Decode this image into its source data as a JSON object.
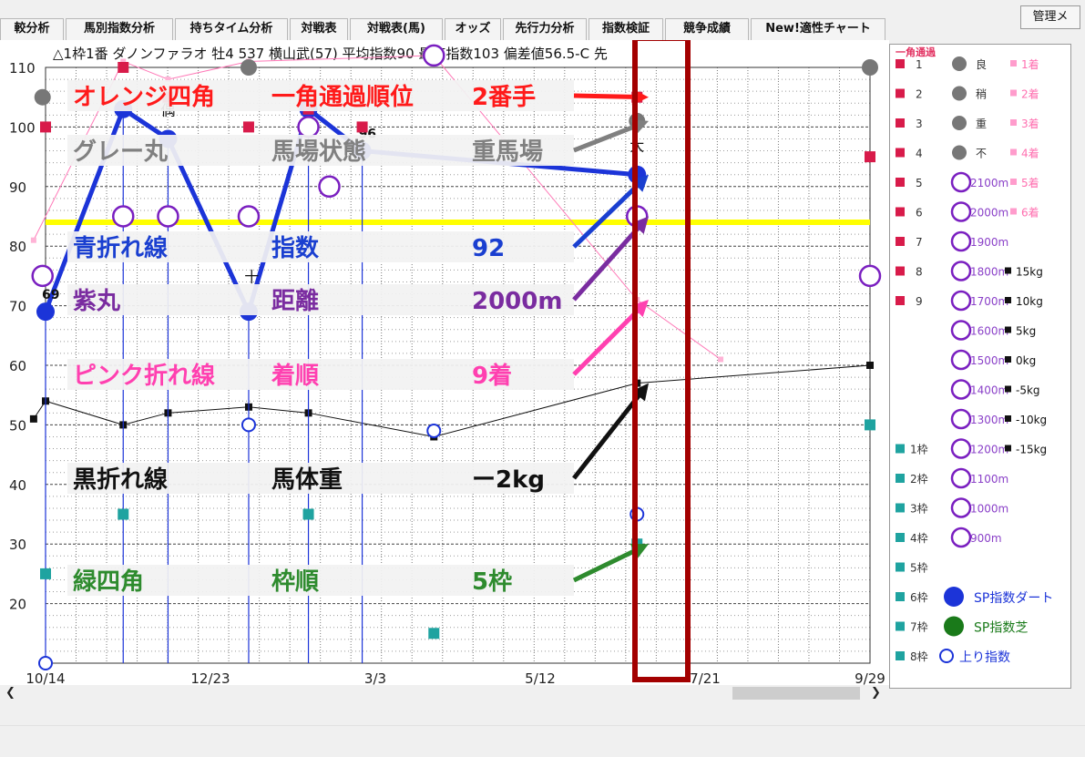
{
  "tabs": [
    "較分析",
    "馬別指数分析",
    "持ちタイム分析",
    "対戦表",
    "対戦表(馬)",
    "オッズ",
    "先行力分析",
    "指数検証",
    "競争成績",
    "New!適性チャート"
  ],
  "admin_button": "管理メ",
  "header_text": "△1枠1番 ダノンファラオ 牡4 537 横山武(57) 平均指数90 最高指数103 偏差値56.5-C 先",
  "colors": {
    "index_line": "#1c34d8",
    "distance_circle": "#7a1fc0",
    "finish_line": "#ff7ab8",
    "weight_line": "#111111",
    "corner_square": "#d81b4a",
    "track_circle": "#777777",
    "frame_square": "#1fa3a0",
    "average_line": "#ffff00",
    "highlight_box": "#a30000"
  },
  "chart_data": {
    "type": "line",
    "xlabels": [
      "10/14",
      "12/23",
      "3/3",
      "5/12",
      "7/21",
      "9/29"
    ],
    "ylim": [
      10,
      110
    ],
    "yticks": [
      20,
      30,
      40,
      50,
      60,
      70,
      80,
      90,
      100,
      110
    ],
    "average_line": 84,
    "series": [
      {
        "key": "index",
        "x": [
          0,
          1.3,
          2.05,
          3.4,
          4.4,
          5.3,
          9.9
        ],
        "y": [
          69,
          103,
          98,
          69,
          103,
          96,
          92
        ],
        "labels": [
          {
            "i": 0,
            "text": "69"
          },
          {
            "i": 5,
            "text": "96"
          }
        ]
      },
      {
        "key": "finish",
        "x": [
          -0.2,
          1.3,
          2.05,
          3.4,
          6.5,
          9.9,
          11.3
        ],
        "y": [
          81,
          111,
          108,
          111,
          112,
          71,
          61
        ]
      },
      {
        "key": "weight",
        "x": [
          -0.2,
          0,
          1.3,
          2.05,
          3.4,
          4.4,
          6.5,
          9.9,
          13.8
        ],
        "y": [
          51,
          54,
          50,
          52,
          53,
          52,
          48,
          57,
          60
        ]
      },
      {
        "key": "distance",
        "x": [
          -0.05,
          1.3,
          2.05,
          3.4,
          4.4,
          4.75,
          6.5,
          9.9,
          13.8
        ],
        "y": [
          75,
          85,
          85,
          85,
          100,
          90,
          112,
          85,
          75
        ]
      },
      {
        "key": "corner",
        "x": [
          0,
          1.3,
          2.05,
          3.4,
          4.4,
          5.3,
          9.9,
          13.8
        ],
        "y": [
          100,
          110,
          105,
          100,
          103,
          100,
          105,
          95
        ]
      },
      {
        "key": "track",
        "x": [
          -0.05,
          3.4,
          9.9,
          13.8
        ],
        "y": [
          105,
          110,
          101,
          110
        ]
      },
      {
        "key": "frame",
        "x": [
          0,
          1.3,
          4.4,
          6.5,
          9.9,
          13.8
        ],
        "y": [
          25,
          35,
          35,
          15,
          30,
          50
        ]
      },
      {
        "key": "last3f",
        "x": [
          0,
          3.4,
          6.5,
          9.9
        ],
        "y": [
          10,
          50,
          49,
          35
        ]
      }
    ],
    "race_marks": [
      {
        "x": 2.05,
        "y": 102,
        "text": "偶"
      },
      {
        "x": 3.45,
        "y": 74,
        "text": "十"
      },
      {
        "x": 9.9,
        "y": 96,
        "text": "大"
      }
    ],
    "annotations": [
      {
        "name": "オレンジ四角",
        "item": "一角通過順位",
        "value": "2番手",
        "color": "#ff1a1a",
        "target_y": 105
      },
      {
        "name": "グレー丸",
        "item": "馬場状態",
        "value": "重馬場",
        "color": "#808080",
        "target_y": 101
      },
      {
        "name": "青折れ線",
        "item": "指数",
        "value": "92",
        "color": "#1a3fd0",
        "target_y": 92
      },
      {
        "name": "紫丸",
        "item": "距離",
        "value": "2000m",
        "color": "#7a2ca0",
        "target_y": 85
      },
      {
        "name": "ピンク折れ線",
        "item": "着順",
        "value": "9着",
        "color": "#ff40b0",
        "target_y": 71
      },
      {
        "name": "黒折れ線",
        "item": "馬体重",
        "value": "ー2kg",
        "color": "#111111",
        "target_y": 57
      },
      {
        "name": "緑四角",
        "item": "枠順",
        "value": "5枠",
        "color": "#2e8b2e",
        "target_y": 30
      }
    ]
  },
  "legend": {
    "title": "一角通過",
    "corner_items": [
      "1",
      "2",
      "3",
      "4",
      "5",
      "6",
      "7",
      "8",
      "9"
    ],
    "track_items": [
      "良",
      "稍",
      "重",
      "不"
    ],
    "finish_items": [
      "1着",
      "2着",
      "3着",
      "4着",
      "5着",
      "6着"
    ],
    "distance_items": [
      "2100m",
      "2000m",
      "1900m",
      "1800m",
      "1700m",
      "1600m",
      "1500m",
      "1400m",
      "1300m",
      "1200m",
      "1100m",
      "1000m",
      "900m"
    ],
    "weight_items": [
      "15kg",
      "10kg",
      "5kg",
      "0kg",
      "-5kg",
      "-10kg",
      "-15kg"
    ],
    "frame_items": [
      "1枠",
      "2枠",
      "3枠",
      "4枠",
      "5枠",
      "6枠",
      "7枠",
      "8枠"
    ],
    "sp_dirt": "SP指数ダート",
    "sp_turf": "SP指数芝",
    "last3f": "上り指数"
  }
}
